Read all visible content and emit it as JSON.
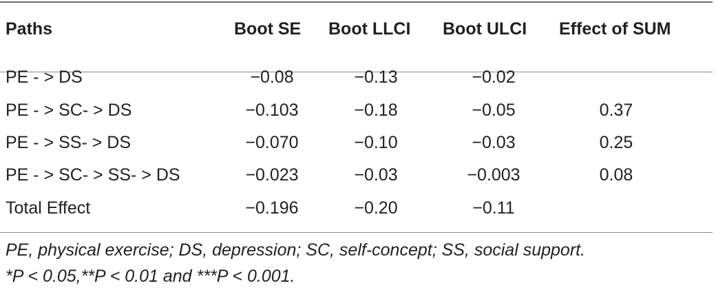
{
  "table": {
    "headers": [
      "Paths",
      "Boot SE",
      "Boot LLCI",
      "Boot ULCI",
      "Effect of SUM"
    ],
    "rows": [
      [
        "PE - > DS",
        "−0.08",
        "−0.13",
        "−0.02",
        ""
      ],
      [
        "PE - > SC- > DS",
        "−0.103",
        "−0.18",
        "−0.05",
        "0.37"
      ],
      [
        "PE - > SS- > DS",
        "−0.070",
        "−0.10",
        "−0.03",
        "0.25"
      ],
      [
        "PE - > SC- > SS- > DS",
        "−0.023",
        "−0.03",
        "−0.003",
        "0.08"
      ],
      [
        "Total Effect",
        "−0.196",
        "−0.20",
        "−0.11",
        ""
      ]
    ]
  },
  "footnotes": [
    "PE, physical exercise; DS, depression; SC, self-concept; SS, social support.",
    "*P < 0.05,**P < 0.01 and ***P < 0.001."
  ]
}
